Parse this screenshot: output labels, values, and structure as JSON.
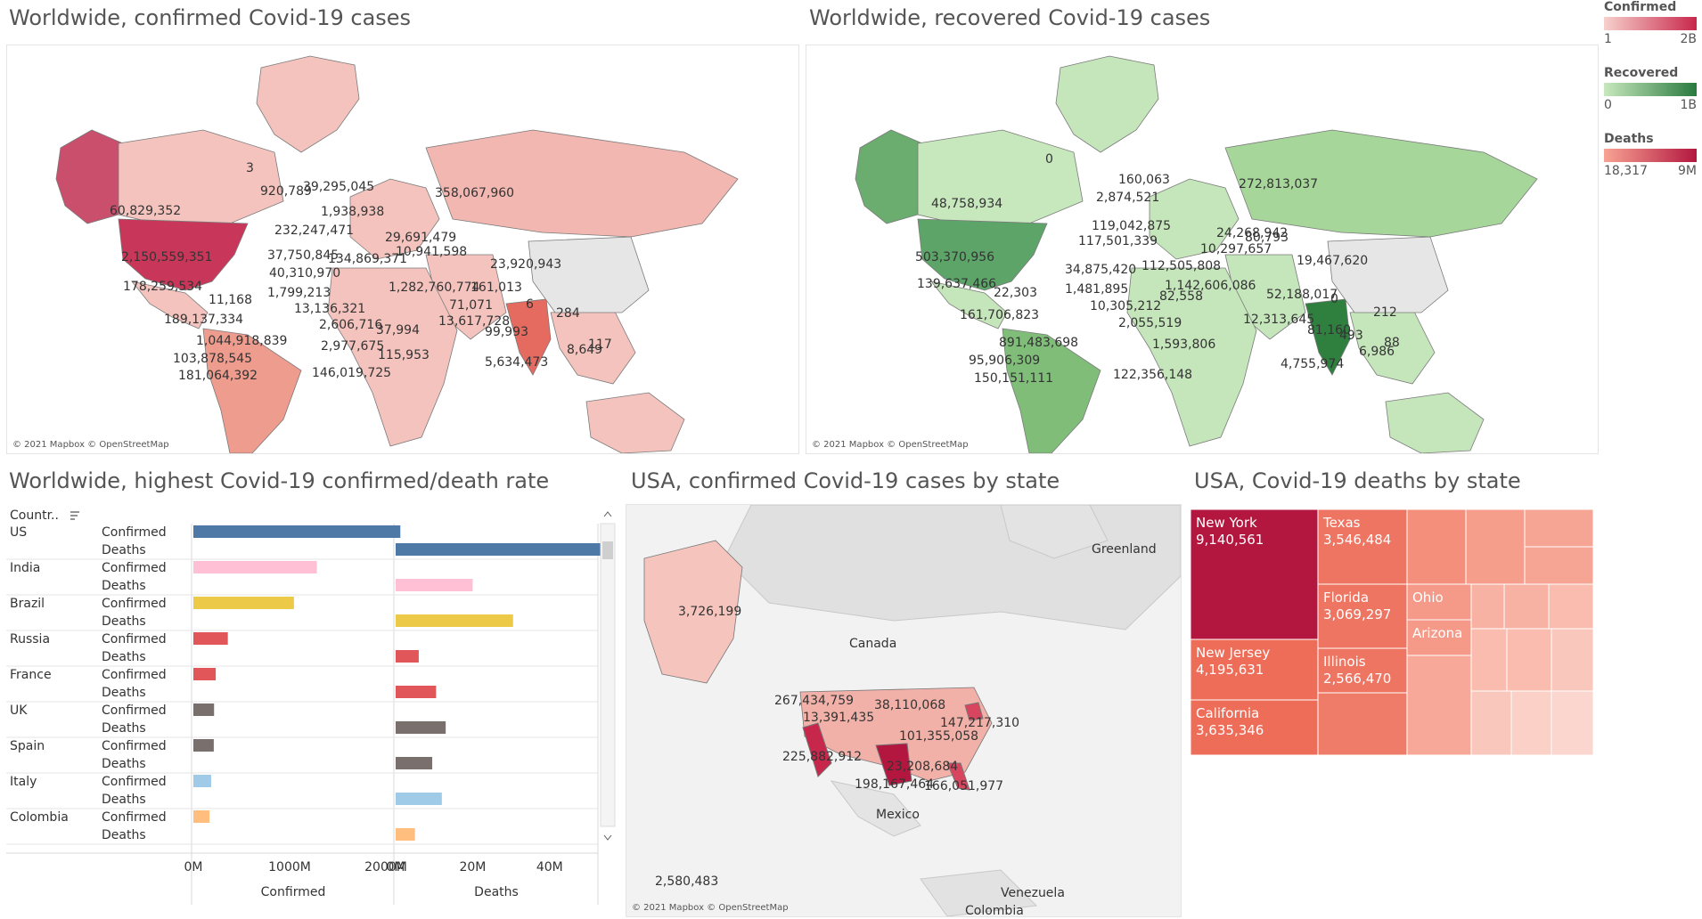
{
  "titles": {
    "confirmed_map": "Worldwide, confirmed Covid-19 cases",
    "recovered_map": "Worldwide, recovered Covid-19 cases",
    "rate_chart": "Worldwide, highest Covid-19 confirmed/death rate",
    "usa_map": "USA, confirmed Covid-19 cases by state",
    "usa_deaths": "USA, Covid-19 deaths by state"
  },
  "attribution": "© 2021 Mapbox © OpenStreetMap",
  "legends": [
    {
      "title": "Confirmed",
      "min": "1",
      "max": "2B",
      "from": "#f7d0cc",
      "to": "#c8274c"
    },
    {
      "title": "Recovered",
      "min": "0",
      "max": "1B",
      "from": "#c7e8bd",
      "to": "#2a7a3e"
    },
    {
      "title": "Deaths",
      "min": "18,317",
      "max": "9M",
      "from": "#f8a394",
      "to": "#b3173f"
    }
  ],
  "colors": {
    "land_confirmed": "#f4c3bd",
    "land_recovered": "#c5e5bb",
    "china": "#e6e6e6"
  },
  "confirmed_labels": [
    "3",
    "920,789",
    "39,295,045",
    "358,067,960",
    "60,829,352",
    "1,938,938",
    "232,247,471",
    "29,691,479",
    "2,150,559,351",
    "37,750,845",
    "134,869,371",
    "10,941,598",
    "23,920,943",
    "40,310,970",
    "178,259,534",
    "1,799,213",
    "11,168",
    "1,282,760,774",
    "161,013",
    "6",
    "13,136,321",
    "71,071",
    "189,137,334",
    "2,606,716",
    "13,617,728",
    "284",
    "37,994",
    "1,044,918,839",
    "99,993",
    "2,977,675",
    "117",
    "103,878,545",
    "115,953",
    "8,649",
    "5,634,473",
    "181,064,392",
    "146,019,725"
  ],
  "recovered_labels": [
    "0",
    "160,063",
    "272,813,037",
    "2,874,521",
    "48,758,934",
    "119,042,875",
    "24,268,942",
    "117,501,339",
    "80,793",
    "10,297,657",
    "503,370,956",
    "34,875,420",
    "112,505,808",
    "19,467,620",
    "139,637,466",
    "22,303",
    "1,481,895",
    "1,142,606,086",
    "52,188,017",
    "0",
    "10,305,212",
    "82,558",
    "161,706,823",
    "2,055,519",
    "212",
    "12,313,645",
    "891,483,698",
    "81,160",
    "493",
    "1,593,806",
    "88",
    "95,906,309",
    "6,986",
    "4,755,974",
    "150,151,111",
    "122,356,148"
  ],
  "usa_labels": [
    "3,726,199",
    "267,434,759",
    "38,110,068",
    "13,391,435",
    "147,217,310",
    "101,355,058",
    "225,882,912",
    "23,208,684",
    "198,167,464",
    "166,051,977",
    "2,580,483"
  ],
  "usa_map_places": [
    "Greenland",
    "Canada",
    "Mexico",
    "Venezuela",
    "Colombia"
  ],
  "rate_chart": {
    "column_header": "Countr..",
    "axis_titles": [
      "Confirmed",
      "Deaths"
    ],
    "confirmed_ticks": [
      "0M",
      "1000M",
      "2000M"
    ],
    "deaths_ticks": [
      "0M",
      "20M",
      "40M"
    ],
    "measure_labels": [
      "Confirmed",
      "Deaths"
    ]
  },
  "chart_data": [
    {
      "type": "bar",
      "title": "Worldwide, highest Covid-19 confirmed/death rate",
      "categories": [
        "US",
        "India",
        "Brazil",
        "Russia",
        "France",
        "UK",
        "Spain",
        "Italy",
        "Colombia"
      ],
      "series": [
        {
          "name": "Confirmed",
          "values": [
            2150559351,
            1282760774,
            1044918839,
            358067960,
            232247471,
            215000000,
            212000000,
            185000000,
            168000000
          ]
        },
        {
          "name": "Deaths",
          "values": [
            53500000,
            20000000,
            30500000,
            6000000,
            10500000,
            13000000,
            9500000,
            12000000,
            5000000
          ]
        }
      ],
      "bar_colors": [
        "#4e79a7",
        "#ffbfd5",
        "#edc948",
        "#e15759",
        "#e15759",
        "#79706e",
        "#79706e",
        "#a0cbe8",
        "#ffbe7d"
      ],
      "confirmed_range": [
        0,
        2000000000
      ],
      "deaths_range": [
        0,
        50000000
      ]
    },
    {
      "type": "heatmap",
      "title": "USA, Covid-19 deaths by state",
      "labeled": [
        {
          "state": "New York",
          "value": "9,140,561"
        },
        {
          "state": "Texas",
          "value": "3,546,484"
        },
        {
          "state": "Florida",
          "value": "3,069,297"
        },
        {
          "state": "Ohio",
          "value": ""
        },
        {
          "state": "Arizona",
          "value": ""
        },
        {
          "state": "New Jersey",
          "value": "4,195,631"
        },
        {
          "state": "Illinois",
          "value": "2,566,470"
        },
        {
          "state": "California",
          "value": "3,635,346"
        }
      ]
    }
  ]
}
